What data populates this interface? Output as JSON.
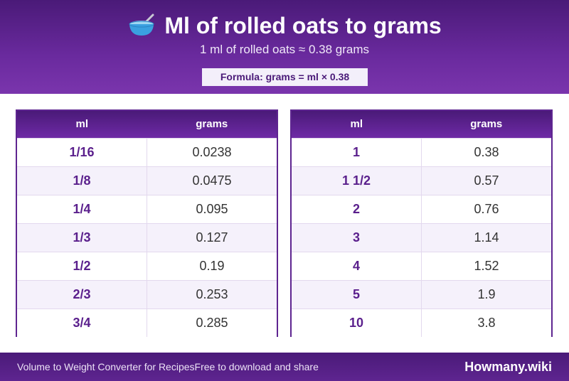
{
  "header": {
    "icon": "bowl-with-spoon-icon",
    "title": "Ml of rolled oats to grams",
    "subtitle": "1 ml of rolled oats ≈ 0.38 grams",
    "formula": "Formula: grams = ml × 0.38"
  },
  "tables": [
    {
      "headers": [
        "ml",
        "grams"
      ],
      "rows": [
        [
          "1/16",
          "0.0238"
        ],
        [
          "1/8",
          "0.0475"
        ],
        [
          "1/4",
          "0.095"
        ],
        [
          "1/3",
          "0.127"
        ],
        [
          "1/2",
          "0.19"
        ],
        [
          "2/3",
          "0.253"
        ],
        [
          "3/4",
          "0.285"
        ]
      ]
    },
    {
      "headers": [
        "ml",
        "grams"
      ],
      "rows": [
        [
          "1",
          "0.38"
        ],
        [
          "1 1/2",
          "0.57"
        ],
        [
          "2",
          "0.76"
        ],
        [
          "3",
          "1.14"
        ],
        [
          "4",
          "1.52"
        ],
        [
          "5",
          "1.9"
        ],
        [
          "10",
          "3.8"
        ]
      ]
    }
  ],
  "footer": {
    "left_text_1": "Volume to Weight Converter for Recipes",
    "left_text_2": "Free to download and share",
    "brand": "Howmany.wiki"
  },
  "colors": {
    "primary": "#5e2590",
    "header_dark": "#4a1a78",
    "row_alt": "#f5f1fb"
  }
}
